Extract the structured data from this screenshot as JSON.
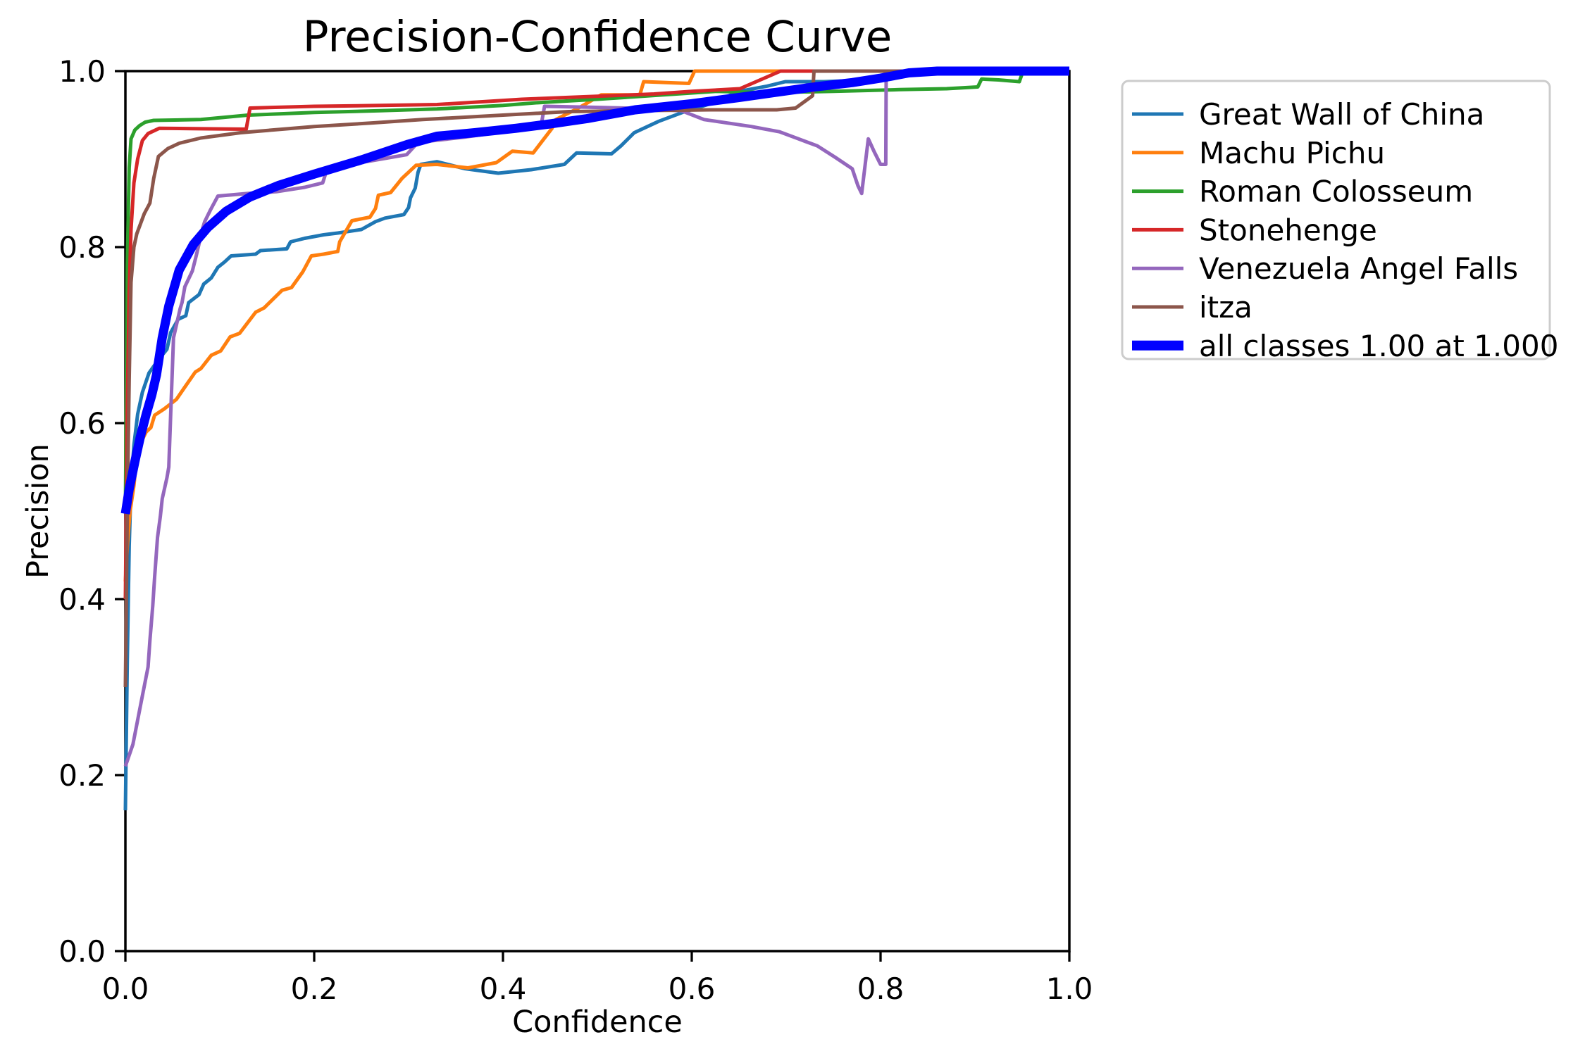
{
  "title": "Precision-Confidence Curve",
  "colors": {
    "background": "#ffffff",
    "text": "#000000",
    "spine": "#000000",
    "legend_border": "#cccccc",
    "legend_background": "#ffffff"
  },
  "chart_data": {
    "type": "line",
    "title": "Precision-Confidence Curve",
    "xlabel": "Confidence",
    "ylabel": "Precision",
    "xlim": [
      0.0,
      1.0
    ],
    "ylim": [
      0.0,
      1.0
    ],
    "grid": false,
    "legend_position": "outside-upper-right",
    "x_ticks": [
      {
        "v": 0.0,
        "label": "0.0"
      },
      {
        "v": 0.2,
        "label": "0.2"
      },
      {
        "v": 0.4,
        "label": "0.4"
      },
      {
        "v": 0.6,
        "label": "0.6"
      },
      {
        "v": 0.8,
        "label": "0.8"
      },
      {
        "v": 1.0,
        "label": "1.0"
      }
    ],
    "y_ticks": [
      {
        "v": 0.0,
        "label": "0.0"
      },
      {
        "v": 0.2,
        "label": "0.2"
      },
      {
        "v": 0.4,
        "label": "0.4"
      },
      {
        "v": 0.6,
        "label": "0.6"
      },
      {
        "v": 0.8,
        "label": "0.8"
      },
      {
        "v": 1.0,
        "label": "1.0"
      }
    ],
    "series": [
      {
        "name": "Great Wall of China",
        "slug": "great-wall-of-china",
        "color": "#1f77b4",
        "line_width": 5,
        "points": [
          [
            0,
            0.16
          ],
          [
            0.002,
            0.33
          ],
          [
            0.004,
            0.46
          ],
          [
            0.006,
            0.53
          ],
          [
            0.009,
            0.575
          ],
          [
            0.013,
            0.61
          ],
          [
            0.018,
            0.635
          ],
          [
            0.025,
            0.657
          ],
          [
            0.035,
            0.672
          ],
          [
            0.044,
            0.684
          ],
          [
            0.048,
            0.703
          ],
          [
            0.056,
            0.718
          ],
          [
            0.064,
            0.722
          ],
          [
            0.067,
            0.737
          ],
          [
            0.078,
            0.746
          ],
          [
            0.083,
            0.758
          ],
          [
            0.091,
            0.765
          ],
          [
            0.098,
            0.777
          ],
          [
            0.105,
            0.783
          ],
          [
            0.112,
            0.79
          ],
          [
            0.138,
            0.792
          ],
          [
            0.143,
            0.796
          ],
          [
            0.171,
            0.798
          ],
          [
            0.175,
            0.806
          ],
          [
            0.19,
            0.81
          ],
          [
            0.21,
            0.814
          ],
          [
            0.225,
            0.816
          ],
          [
            0.25,
            0.82
          ],
          [
            0.265,
            0.829
          ],
          [
            0.275,
            0.833
          ],
          [
            0.295,
            0.837
          ],
          [
            0.3,
            0.845
          ],
          [
            0.302,
            0.856
          ],
          [
            0.307,
            0.867
          ],
          [
            0.31,
            0.885
          ],
          [
            0.313,
            0.894
          ],
          [
            0.33,
            0.897
          ],
          [
            0.36,
            0.889
          ],
          [
            0.395,
            0.884
          ],
          [
            0.43,
            0.888
          ],
          [
            0.465,
            0.894
          ],
          [
            0.478,
            0.907
          ],
          [
            0.515,
            0.906
          ],
          [
            0.525,
            0.915
          ],
          [
            0.539,
            0.93
          ],
          [
            0.565,
            0.943
          ],
          [
            0.59,
            0.953
          ],
          [
            0.62,
            0.963
          ],
          [
            0.65,
            0.977
          ],
          [
            0.68,
            0.983
          ],
          [
            0.699,
            0.988
          ],
          [
            0.74,
            0.988
          ],
          [
            0.79,
            0.99
          ],
          [
            0.81,
            0.997
          ],
          [
            0.828,
            1.0
          ],
          [
            1,
            1
          ]
        ]
      },
      {
        "name": "Machu Pichu",
        "slug": "machu-pichu",
        "color": "#ff7f0e",
        "line_width": 5,
        "points": [
          [
            0,
            0.42
          ],
          [
            0.002,
            0.46
          ],
          [
            0.005,
            0.5
          ],
          [
            0.009,
            0.529
          ],
          [
            0.011,
            0.55
          ],
          [
            0.013,
            0.562
          ],
          [
            0.016,
            0.577
          ],
          [
            0.022,
            0.59
          ],
          [
            0.027,
            0.595
          ],
          [
            0.031,
            0.609
          ],
          [
            0.041,
            0.616
          ],
          [
            0.054,
            0.627
          ],
          [
            0.063,
            0.641
          ],
          [
            0.074,
            0.658
          ],
          [
            0.08,
            0.662
          ],
          [
            0.091,
            0.677
          ],
          [
            0.101,
            0.682
          ],
          [
            0.111,
            0.698
          ],
          [
            0.121,
            0.702
          ],
          [
            0.138,
            0.726
          ],
          [
            0.147,
            0.731
          ],
          [
            0.166,
            0.751
          ],
          [
            0.176,
            0.754
          ],
          [
            0.188,
            0.772
          ],
          [
            0.197,
            0.79
          ],
          [
            0.21,
            0.792
          ],
          [
            0.225,
            0.795
          ],
          [
            0.227,
            0.806
          ],
          [
            0.24,
            0.83
          ],
          [
            0.259,
            0.834
          ],
          [
            0.265,
            0.844
          ],
          [
            0.268,
            0.859
          ],
          [
            0.281,
            0.862
          ],
          [
            0.293,
            0.878
          ],
          [
            0.308,
            0.893
          ],
          [
            0.33,
            0.894
          ],
          [
            0.363,
            0.89
          ],
          [
            0.393,
            0.896
          ],
          [
            0.41,
            0.909
          ],
          [
            0.432,
            0.907
          ],
          [
            0.452,
            0.935
          ],
          [
            0.456,
            0.945
          ],
          [
            0.48,
            0.958
          ],
          [
            0.504,
            0.973
          ],
          [
            0.545,
            0.973
          ],
          [
            0.549,
            0.988
          ],
          [
            0.597,
            0.986
          ],
          [
            0.603,
            1.0
          ],
          [
            1,
            1
          ]
        ]
      },
      {
        "name": "Roman Colosseum",
        "slug": "roman-colosseum",
        "color": "#2ca02c",
        "line_width": 5,
        "points": [
          [
            0,
            0.5
          ],
          [
            0.002,
            0.78
          ],
          [
            0.004,
            0.89
          ],
          [
            0.006,
            0.923
          ],
          [
            0.01,
            0.933
          ],
          [
            0.015,
            0.938
          ],
          [
            0.021,
            0.942
          ],
          [
            0.03,
            0.944
          ],
          [
            0.08,
            0.945
          ],
          [
            0.13,
            0.95
          ],
          [
            0.2,
            0.953
          ],
          [
            0.27,
            0.955
          ],
          [
            0.33,
            0.957
          ],
          [
            0.4,
            0.961
          ],
          [
            0.435,
            0.964
          ],
          [
            0.5,
            0.968
          ],
          [
            0.57,
            0.973
          ],
          [
            0.626,
            0.977
          ],
          [
            0.68,
            0.9755
          ],
          [
            0.75,
            0.977
          ],
          [
            0.82,
            0.979
          ],
          [
            0.87,
            0.98
          ],
          [
            0.903,
            0.982
          ],
          [
            0.907,
            0.991
          ],
          [
            0.925,
            0.99
          ],
          [
            0.947,
            0.988
          ],
          [
            0.951,
            1.0
          ],
          [
            1,
            1
          ]
        ]
      },
      {
        "name": "Stonehenge",
        "slug": "stonehenge",
        "color": "#d62728",
        "line_width": 5,
        "points": [
          [
            0,
            0.4
          ],
          [
            0.002,
            0.62
          ],
          [
            0.004,
            0.75
          ],
          [
            0.006,
            0.82
          ],
          [
            0.009,
            0.873
          ],
          [
            0.013,
            0.9
          ],
          [
            0.018,
            0.921
          ],
          [
            0.024,
            0.929
          ],
          [
            0.036,
            0.935
          ],
          [
            0.08,
            0.9345
          ],
          [
            0.128,
            0.934
          ],
          [
            0.132,
            0.958
          ],
          [
            0.2,
            0.96
          ],
          [
            0.27,
            0.961
          ],
          [
            0.33,
            0.962
          ],
          [
            0.42,
            0.968
          ],
          [
            0.49,
            0.971
          ],
          [
            0.56,
            0.974
          ],
          [
            0.6,
            0.977
          ],
          [
            0.651,
            0.98
          ],
          [
            0.694,
            1.0
          ],
          [
            1,
            1
          ]
        ]
      },
      {
        "name": "Venezuela Angel Falls",
        "slug": "venezuela-angel-falls",
        "color": "#9467bd",
        "line_width": 5,
        "points": [
          [
            0,
            0.21
          ],
          [
            0.008,
            0.235
          ],
          [
            0.018,
            0.29
          ],
          [
            0.024,
            0.323
          ],
          [
            0.026,
            0.353
          ],
          [
            0.029,
            0.393
          ],
          [
            0.031,
            0.425
          ],
          [
            0.034,
            0.47
          ],
          [
            0.037,
            0.494
          ],
          [
            0.039,
            0.514
          ],
          [
            0.044,
            0.538
          ],
          [
            0.046,
            0.55
          ],
          [
            0.048,
            0.61
          ],
          [
            0.051,
            0.697
          ],
          [
            0.058,
            0.73
          ],
          [
            0.06,
            0.737
          ],
          [
            0.063,
            0.755
          ],
          [
            0.071,
            0.773
          ],
          [
            0.075,
            0.79
          ],
          [
            0.082,
            0.822
          ],
          [
            0.084,
            0.829
          ],
          [
            0.09,
            0.842
          ],
          [
            0.098,
            0.858
          ],
          [
            0.13,
            0.861
          ],
          [
            0.16,
            0.863
          ],
          [
            0.19,
            0.868
          ],
          [
            0.209,
            0.873
          ],
          [
            0.214,
            0.89
          ],
          [
            0.26,
            0.898
          ],
          [
            0.298,
            0.905
          ],
          [
            0.31,
            0.919
          ],
          [
            0.36,
            0.925
          ],
          [
            0.4,
            0.931
          ],
          [
            0.44,
            0.936
          ],
          [
            0.444,
            0.96
          ],
          [
            0.49,
            0.959
          ],
          [
            0.53,
            0.958
          ],
          [
            0.589,
            0.955
          ],
          [
            0.613,
            0.945
          ],
          [
            0.663,
            0.937
          ],
          [
            0.693,
            0.931
          ],
          [
            0.713,
            0.923
          ],
          [
            0.733,
            0.915
          ],
          [
            0.752,
            0.902
          ],
          [
            0.77,
            0.889
          ],
          [
            0.776,
            0.87
          ],
          [
            0.78,
            0.861
          ],
          [
            0.787,
            0.923
          ],
          [
            0.793,
            0.909
          ],
          [
            0.8,
            0.894
          ],
          [
            0.8055,
            0.894
          ],
          [
            0.806,
            1.0
          ],
          [
            1,
            1
          ]
        ]
      },
      {
        "name": "itza",
        "slug": "itza",
        "color": "#8c564b",
        "line_width": 5,
        "points": [
          [
            0,
            0.3
          ],
          [
            0.002,
            0.5
          ],
          [
            0.004,
            0.65
          ],
          [
            0.006,
            0.76
          ],
          [
            0.009,
            0.8
          ],
          [
            0.012,
            0.815
          ],
          [
            0.02,
            0.838
          ],
          [
            0.026,
            0.85
          ],
          [
            0.03,
            0.878
          ],
          [
            0.035,
            0.903
          ],
          [
            0.045,
            0.912
          ],
          [
            0.057,
            0.918
          ],
          [
            0.08,
            0.924
          ],
          [
            0.122,
            0.93
          ],
          [
            0.2,
            0.937
          ],
          [
            0.26,
            0.941
          ],
          [
            0.315,
            0.945
          ],
          [
            0.4,
            0.95
          ],
          [
            0.47,
            0.954
          ],
          [
            0.539,
            0.955
          ],
          [
            0.62,
            0.956
          ],
          [
            0.69,
            0.956
          ],
          [
            0.71,
            0.958
          ],
          [
            0.728,
            0.972
          ],
          [
            0.7295,
            1.0
          ],
          [
            1,
            1
          ]
        ]
      },
      {
        "name": "all classes 1.00 at 1.000",
        "slug": "all-classes",
        "color": "#0000ff",
        "line_width": 13,
        "points": [
          [
            0,
            0.497
          ],
          [
            0.004,
            0.525
          ],
          [
            0.01,
            0.556
          ],
          [
            0.016,
            0.585
          ],
          [
            0.022,
            0.61
          ],
          [
            0.028,
            0.632
          ],
          [
            0.033,
            0.655
          ],
          [
            0.039,
            0.697
          ],
          [
            0.046,
            0.733
          ],
          [
            0.057,
            0.774
          ],
          [
            0.072,
            0.803
          ],
          [
            0.087,
            0.822
          ],
          [
            0.107,
            0.841
          ],
          [
            0.132,
            0.857
          ],
          [
            0.162,
            0.87
          ],
          [
            0.2,
            0.883
          ],
          [
            0.25,
            0.899
          ],
          [
            0.3,
            0.917
          ],
          [
            0.33,
            0.926
          ],
          [
            0.37,
            0.93
          ],
          [
            0.414,
            0.935
          ],
          [
            0.45,
            0.94
          ],
          [
            0.489,
            0.946
          ],
          [
            0.54,
            0.956
          ],
          [
            0.6,
            0.963
          ],
          [
            0.65,
            0.97
          ],
          [
            0.69,
            0.976
          ],
          [
            0.73,
            0.982
          ],
          [
            0.77,
            0.987
          ],
          [
            0.8,
            0.992
          ],
          [
            0.83,
            0.998
          ],
          [
            0.86,
            1.0
          ],
          [
            1,
            1
          ]
        ]
      }
    ]
  }
}
